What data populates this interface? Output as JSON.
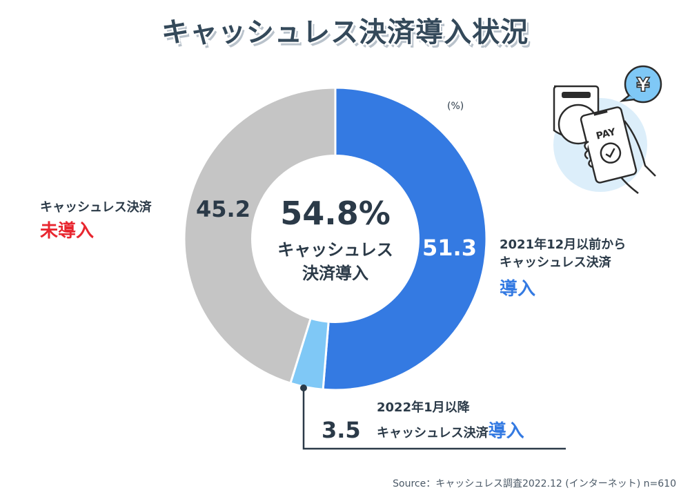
{
  "title": "キャッシュレス決済導入状況",
  "unit": "(%)",
  "center": {
    "value": "54.8%",
    "line1": "キャッシュレス",
    "line2": "決済導入"
  },
  "labels": {
    "not_adopted": {
      "line1": "キャッシュレス決済",
      "emph": "未導入",
      "value": "45.2"
    },
    "before": {
      "line1": "2021年12月以前から",
      "line2": "キャッシュレス決済",
      "emph": "導入",
      "value": "51.3"
    },
    "after": {
      "line1": "2022年1月以降",
      "line2": "キャッシュレス決済",
      "emph": "導入",
      "value": "3.5"
    }
  },
  "illustration": {
    "text": "PAY",
    "symbol": "¥"
  },
  "source": "Source：キャッシュレス調査2022.12 (インターネット) n=610",
  "chart_data": {
    "type": "pie",
    "donut": true,
    "categories": [
      "2021年12月以前からキャッシュレス決済導入",
      "2022年1月以降キャッシュレス決済導入",
      "キャッシュレス決済未導入"
    ],
    "values": [
      51.3,
      3.5,
      45.2
    ],
    "colors": [
      "#347ae2",
      "#7fc8f6",
      "#c5c5c5"
    ],
    "start": "top, clockwise",
    "unit": "%"
  },
  "colors": {
    "red": "#e8262f",
    "blue": "#347ae2",
    "text": "#2b3a48"
  }
}
